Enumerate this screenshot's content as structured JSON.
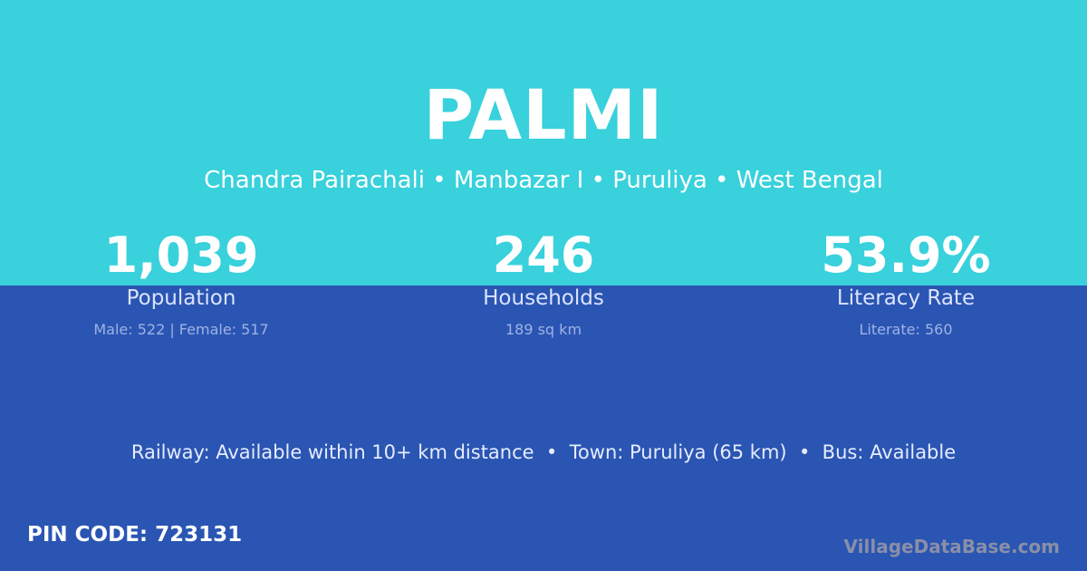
{
  "village": {
    "name": "PALMI",
    "location": "Chandra Pairachali • Manbazar I • Puruliya • West Bengal"
  },
  "stats": [
    {
      "value": "1,039",
      "label": "Population",
      "detail": "Male: 522 | Female: 517"
    },
    {
      "value": "246",
      "label": "Households",
      "detail": "189 sq km"
    },
    {
      "value": "53.9%",
      "label": "Literacy Rate",
      "detail": "Literate: 560"
    }
  ],
  "connectivity": "Railway: Available within 10+ km distance  •  Town: Puruliya (65 km)  •  Bus: Available",
  "pin_code": "PIN CODE: 723131",
  "brand": "VillageDataBase.com",
  "colors": {
    "top": "#38d1dc",
    "bottom": "#2a55b2"
  }
}
